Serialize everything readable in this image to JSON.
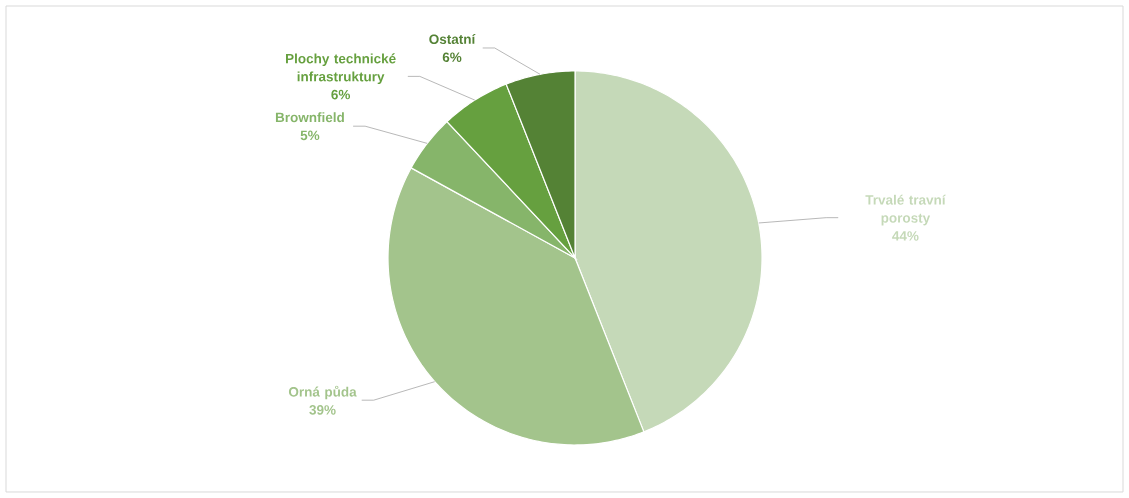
{
  "chart_data": {
    "type": "pie",
    "categories": [
      "Trvalé travní porosty",
      "Orná půda",
      "Brownfield",
      "Plochy technické infrastruktury",
      "Ostatní"
    ],
    "values": [
      44,
      39,
      5,
      6,
      6
    ],
    "value_labels": [
      "44%",
      "39%",
      "5%",
      "6%",
      "6%"
    ],
    "colors": [
      "#c5d9b8",
      "#a3c48c",
      "#86b56a",
      "#66a03f",
      "#548235"
    ]
  }
}
